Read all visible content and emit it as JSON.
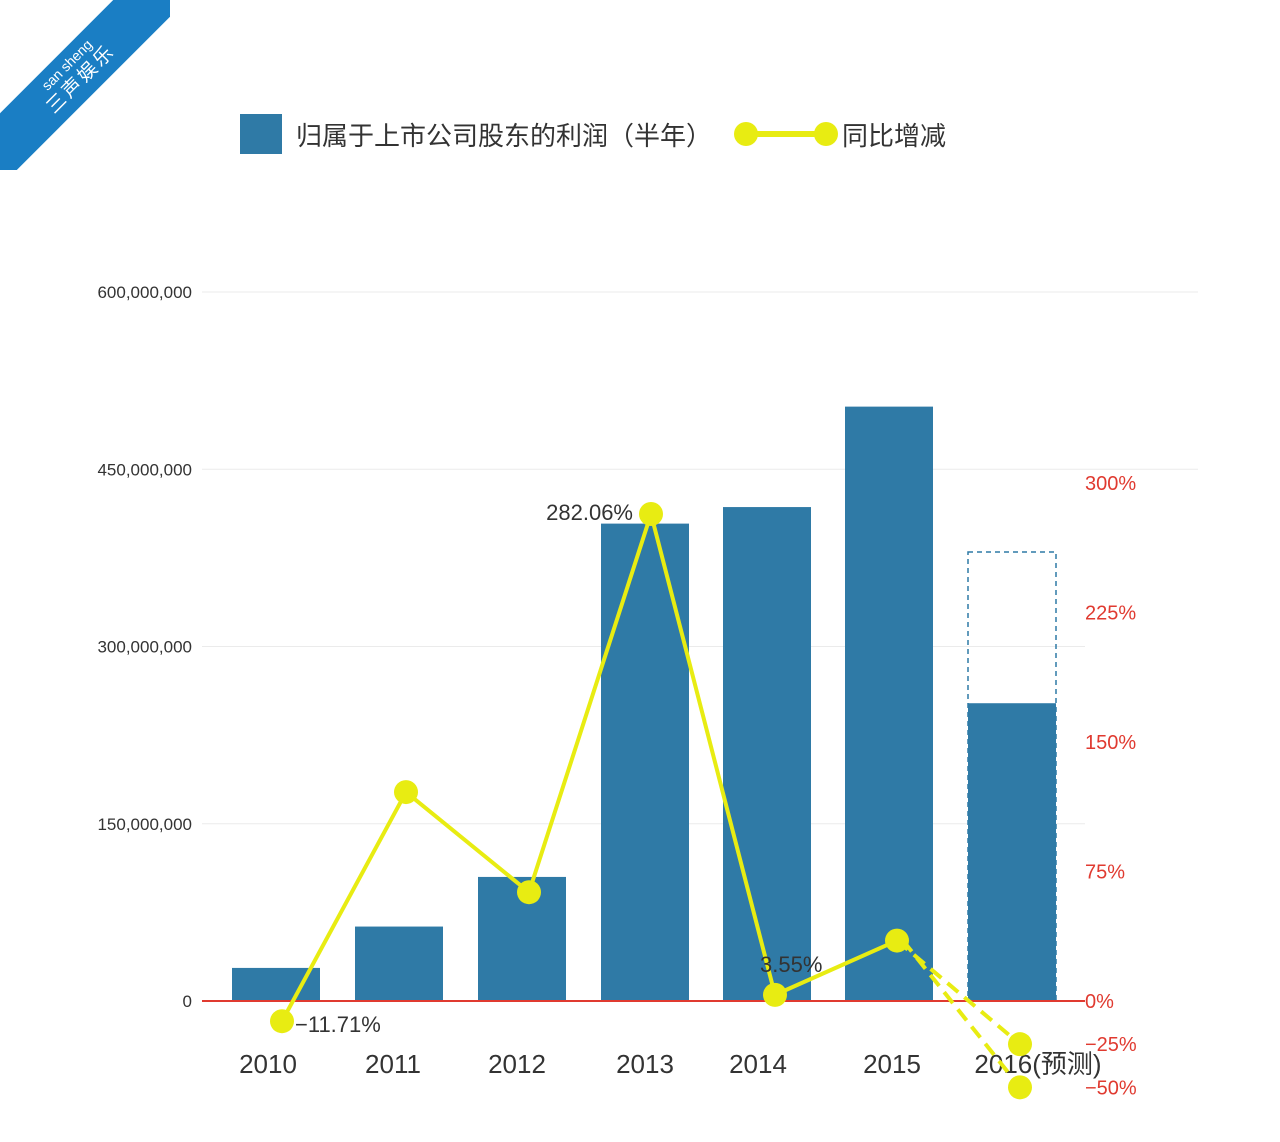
{
  "watermark": {
    "line1": "san sheng",
    "line2": "三声娱乐"
  },
  "chart_data": {
    "type": "bar",
    "legend_position": "top",
    "categories": [
      "2010",
      "2011",
      "2012",
      "2013",
      "2014",
      "2015",
      "2016(预测)"
    ],
    "series": [
      {
        "name": "归属于上市公司股东的利润（半年）",
        "type": "bar",
        "axis": "left",
        "color": "#2f7aa6",
        "values": [
          28000000,
          63000000,
          105000000,
          404000000,
          418000000,
          503000000,
          252000000
        ],
        "forecast_range": {
          "category": "2016(预测)",
          "low": 252000000,
          "high": 380000000
        }
      },
      {
        "name": "同比增减",
        "type": "line",
        "axis": "right",
        "unit": "%",
        "color": "#e8ec12",
        "values": [
          -11.71,
          121,
          63,
          282.06,
          3.55,
          35,
          null
        ],
        "forecast_values": {
          "category": "2016(预测)",
          "values": [
            -25,
            -50
          ]
        }
      }
    ],
    "data_labels": [
      {
        "category": "2010",
        "text": "−11.71%"
      },
      {
        "category": "2013",
        "text": "282.06%"
      },
      {
        "category": "2014",
        "text": "3.55%"
      }
    ],
    "left_axis": {
      "ylim": [
        0,
        600000000
      ],
      "ticks": [
        0,
        150000000,
        300000000,
        450000000,
        600000000
      ],
      "tick_labels": [
        "0",
        "150,000,000",
        "300,000,000",
        "450,000,000",
        "600,000,000"
      ]
    },
    "right_axis": {
      "ylim": [
        -50,
        300
      ],
      "ticks": [
        300,
        225,
        150,
        75,
        0,
        -25,
        -50
      ],
      "tick_labels": [
        "300%",
        "225%",
        "150%",
        "75%",
        "0%",
        "−25%",
        "−50%"
      ],
      "color": "#e03a30"
    },
    "grid": true,
    "zero_line_color": "#e03a30"
  }
}
